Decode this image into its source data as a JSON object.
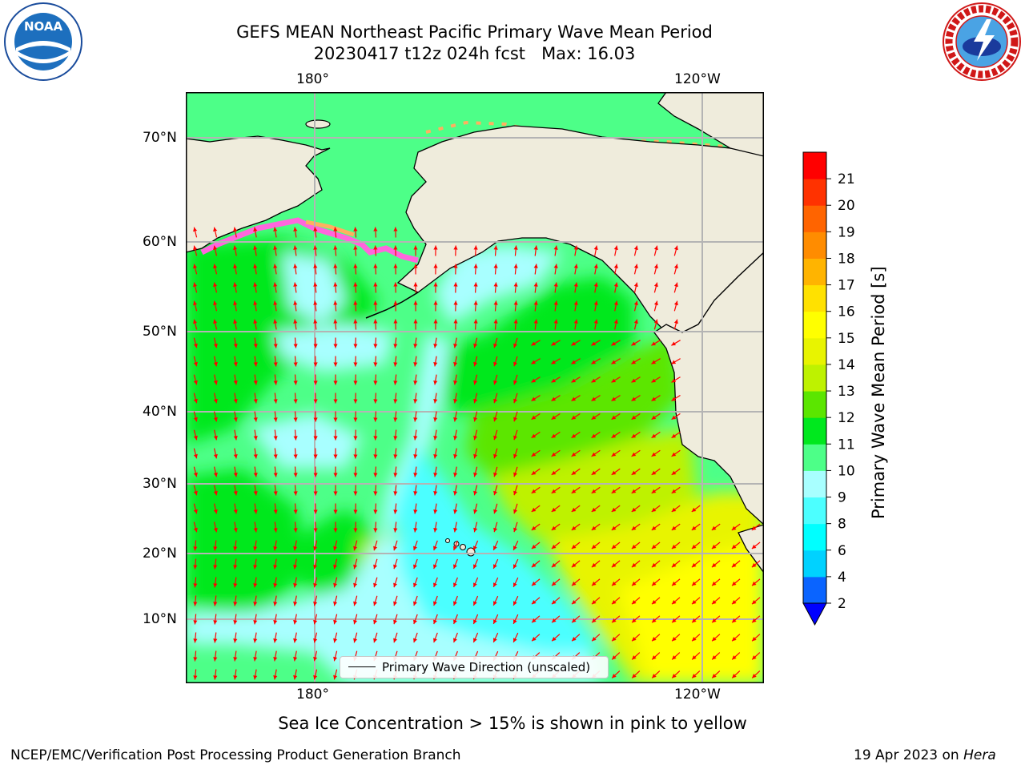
{
  "title": {
    "line1": "GEFS MEAN Northeast Pacific Primary Wave Mean Period",
    "line2": "20230417 t12z 024h fcst   Max: 16.03"
  },
  "axes": {
    "lon_top": [
      "180°",
      "120°W"
    ],
    "lon_bottom": [
      "180°",
      "120°W"
    ],
    "lat": [
      "70°N",
      "60°N",
      "50°N",
      "40°N",
      "30°N",
      "20°N",
      "10°N"
    ]
  },
  "legend": {
    "label": "Primary Wave Direction (unscaled)"
  },
  "colorbar": {
    "title": "Primary Wave Mean Period [s]",
    "ticks": [
      "2",
      "4",
      "6",
      "8",
      "9",
      "10",
      "11",
      "12",
      "13",
      "14",
      "15",
      "16",
      "17",
      "18",
      "19",
      "20",
      "21"
    ],
    "colors": [
      "#0a64ff",
      "#00d2ff",
      "#00ffff",
      "#4cffff",
      "#a8ffff",
      "#4dff88",
      "#00e81e",
      "#5be600",
      "#bef200",
      "#e8f400",
      "#ffff00",
      "#ffe100",
      "#ffb400",
      "#ff8c00",
      "#ff6400",
      "#ff3200",
      "#ff0000"
    ],
    "extend_color": "#0000ff"
  },
  "colors": {
    "land": "#efecdc",
    "arrows": "#ff0000",
    "grid": "#b4b4b4",
    "ice_pink": "#ff66dd",
    "ice_orange": "#ffb060"
  },
  "logos": {
    "left": "NOAA",
    "right": "NATIONAL WEATHER SERVICE"
  },
  "note": "Sea Ice Concentration > 15% is shown in pink to yellow",
  "footer": {
    "left": "NCEP/EMC/Verification Post Processing Product Generation Branch",
    "right_date": "19 Apr 2023 on ",
    "right_host": "Hera"
  }
}
